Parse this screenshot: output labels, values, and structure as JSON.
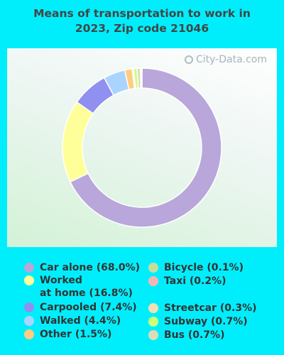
{
  "title_line1": "Means of transportation to work in",
  "title_line2": "2023, Zip code 21046",
  "watermark": "City-Data.com",
  "chart_data": {
    "type": "pie",
    "donut": true,
    "title": "Means of transportation to work in 2023, Zip code 21046",
    "slices": [
      {
        "label": "Car alone",
        "value": 68.0,
        "color": "#b9a6da"
      },
      {
        "label": "Worked at home",
        "value": 16.8,
        "color": "#ffff99"
      },
      {
        "label": "Carpooled",
        "value": 7.4,
        "color": "#9090f0"
      },
      {
        "label": "Walked",
        "value": 4.4,
        "color": "#aad4ff"
      },
      {
        "label": "Other",
        "value": 1.5,
        "color": "#ffcc80"
      },
      {
        "label": "Streetcar",
        "value": 0.3,
        "color": "#f5deb3"
      },
      {
        "label": "Subway",
        "value": 0.7,
        "color": "#ccff77"
      },
      {
        "label": "Bus",
        "value": 0.7,
        "color": "#dedcb8"
      },
      {
        "label": "Taxi",
        "value": 0.2,
        "color": "#f4b4b4"
      },
      {
        "label": "Bicycle",
        "value": 0.1,
        "color": "#c8dca0"
      }
    ]
  },
  "legend": [
    {
      "text": "Car alone (68.0%)",
      "color": "#b9a6da"
    },
    {
      "text": "Worked\nat home (16.8%)",
      "color": "#ffff99"
    },
    {
      "text": "Carpooled (7.4%)",
      "color": "#9090f0"
    },
    {
      "text": "Walked (4.4%)",
      "color": "#aad4ff"
    },
    {
      "text": "Other (1.5%)",
      "color": "#ffcc80"
    },
    {
      "text": "Bicycle (0.1%)",
      "color": "#c8dca0"
    },
    {
      "text": "Taxi (0.2%)",
      "color": "#f4b4b4"
    },
    {
      "text": "Streetcar (0.3%)",
      "color": "#f5deb3"
    },
    {
      "text": "Subway (0.7%)",
      "color": "#ccff77"
    },
    {
      "text": "Bus (0.7%)",
      "color": "#dedcb8"
    }
  ]
}
